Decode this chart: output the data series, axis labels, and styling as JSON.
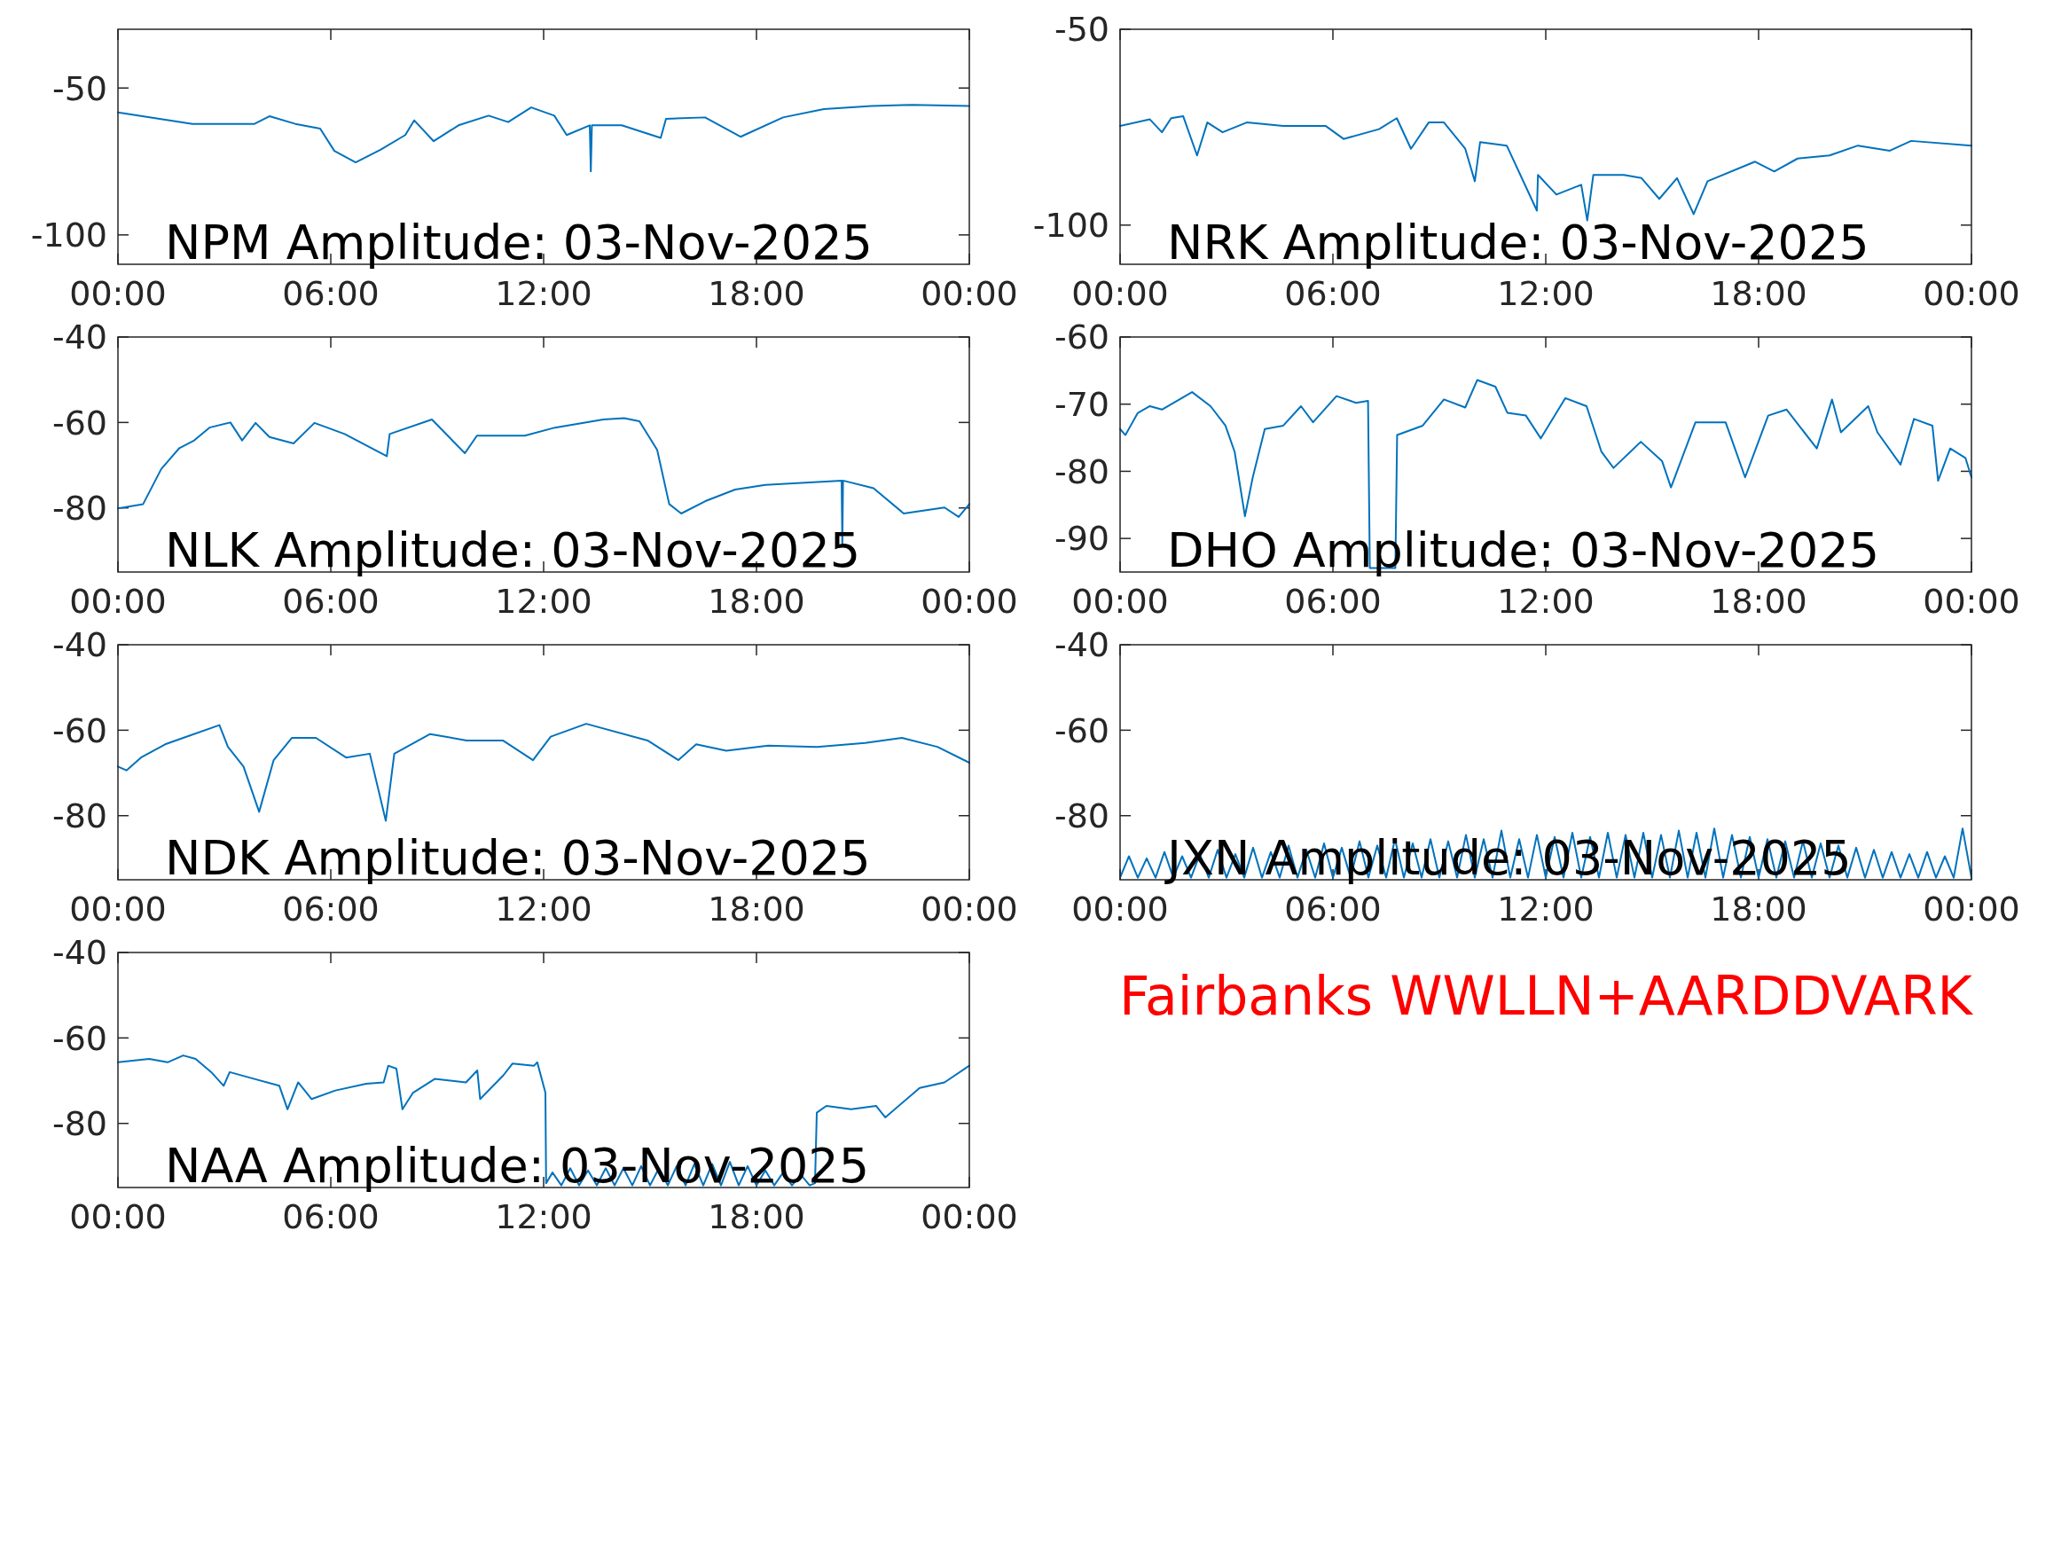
{
  "chart_data": [
    {
      "type": "line",
      "title": "NPM Amplitude: 03-Nov-2025",
      "color": "#0072bd",
      "xlim": [
        0,
        24
      ],
      "ylim": [
        -110,
        -30
      ],
      "yticks": [
        -100,
        -50
      ],
      "xticks": [
        {
          "value": 0,
          "label": "00:00"
        },
        {
          "value": 6,
          "label": "06:00"
        },
        {
          "value": 12,
          "label": "12:00"
        },
        {
          "value": 18,
          "label": "18:00"
        },
        {
          "value": 24,
          "label": "00:00"
        }
      ],
      "x": [
        0,
        2.1,
        3.85,
        4.27,
        5,
        5.7,
        6.1,
        6.7,
        7.4,
        8.1,
        8.35,
        8.9,
        9.6,
        10.45,
        11,
        11.65,
        12.3,
        12.65,
        13.3,
        13.33,
        13.36,
        14.2,
        15.3,
        15.45,
        16.55,
        17.55,
        18.75,
        19.9,
        21.25,
        22.4,
        24
      ],
      "values": [
        -58.3,
        -62.2,
        -62.2,
        -59.6,
        -62.2,
        -63.8,
        -71.4,
        -75.3,
        -71,
        -66,
        -61,
        -68.1,
        -62.7,
        -59.4,
        -61.6,
        -56.6,
        -59.4,
        -66,
        -62.7,
        -78.4,
        -62.7,
        -62.7,
        -67,
        -60.5,
        -60,
        -66.6,
        -60,
        -57.2,
        -56.1,
        -55.7,
        -56.1
      ]
    },
    {
      "type": "line",
      "title": "NRK Amplitude: 03-Nov-2025",
      "color": "#0072bd",
      "xlim": [
        0,
        24
      ],
      "ylim": [
        -110,
        -50
      ],
      "yticks": [
        -100,
        -50
      ],
      "xticks": [
        {
          "value": 0,
          "label": "00:00"
        },
        {
          "value": 6,
          "label": "06:00"
        },
        {
          "value": 12,
          "label": "12:00"
        },
        {
          "value": 18,
          "label": "18:00"
        },
        {
          "value": 24,
          "label": "00:00"
        }
      ],
      "x": [
        0,
        0.84,
        1.18,
        1.44,
        1.78,
        2.17,
        2.46,
        2.89,
        3.57,
        4.6,
        5.8,
        6.3,
        7.3,
        7.8,
        8.2,
        8.7,
        9.13,
        9.73,
        10,
        10.15,
        10.9,
        11.75,
        11.78,
        12.3,
        13,
        13.17,
        13.34,
        14.2,
        14.7,
        15.2,
        15.7,
        16.17,
        16.56,
        17.9,
        18.44,
        19.1,
        20,
        20.8,
        21.7,
        22.3,
        24
      ],
      "values": [
        -74.7,
        -73,
        -76.3,
        -72.7,
        -72.2,
        -82.2,
        -73.8,
        -76.3,
        -73.8,
        -74.7,
        -74.7,
        -78,
        -75.5,
        -72.7,
        -80.5,
        -73.8,
        -73.8,
        -80.5,
        -88.8,
        -78.8,
        -79.7,
        -96.3,
        -87.2,
        -92.2,
        -89.7,
        -98.8,
        -87.2,
        -87.2,
        -88,
        -93.3,
        -88,
        -97.2,
        -88.8,
        -83.8,
        -86.3,
        -83,
        -82.2,
        -79.7,
        -81,
        -78.5,
        -79.7
      ]
    },
    {
      "type": "line",
      "title": "NLK Amplitude: 03-Nov-2025",
      "color": "#0072bd",
      "xlim": [
        0,
        24
      ],
      "ylim": [
        -95,
        -40
      ],
      "yticks": [
        -80,
        -60,
        -40
      ],
      "xticks": [
        {
          "value": 0,
          "label": "00:00"
        },
        {
          "value": 6,
          "label": "06:00"
        },
        {
          "value": 12,
          "label": "12:00"
        },
        {
          "value": 18,
          "label": "18:00"
        },
        {
          "value": 24,
          "label": "00:00"
        }
      ],
      "x": [
        0,
        0.71,
        1.22,
        1.73,
        2.15,
        2.58,
        3.17,
        3.5,
        3.88,
        4.27,
        4.95,
        5.54,
        6.39,
        7.58,
        7.66,
        8.85,
        9.78,
        10.12,
        11.47,
        12.32,
        13.68,
        14.27,
        14.7,
        15.2,
        15.54,
        15.88,
        16.56,
        17.4,
        18.25,
        20.4,
        20.42,
        20.44,
        21.3,
        22.15,
        23.3,
        23.7,
        24
      ],
      "values": [
        -80.1,
        -79.1,
        -70.9,
        -66,
        -64.2,
        -61.2,
        -60,
        -64.2,
        -60.1,
        -63.4,
        -64.9,
        -60.1,
        -62.7,
        -67.9,
        -62.7,
        -59.3,
        -67.2,
        -63.1,
        -63.1,
        -61.2,
        -59.3,
        -59,
        -59.7,
        -66.4,
        -79.1,
        -81.3,
        -78.4,
        -75.7,
        -74.6,
        -73.6,
        -88.8,
        -73.6,
        -75.4,
        -81.3,
        -79.9,
        -82.1,
        -79.1
      ]
    },
    {
      "type": "line",
      "title": "DHO Amplitude: 03-Nov-2025",
      "color": "#0072bd",
      "xlim": [
        0,
        24
      ],
      "ylim": [
        -95,
        -60
      ],
      "yticks": [
        -90,
        -80,
        -70,
        -60
      ],
      "xticks": [
        {
          "value": 0,
          "label": "00:00"
        },
        {
          "value": 6,
          "label": "06:00"
        },
        {
          "value": 12,
          "label": "12:00"
        },
        {
          "value": 18,
          "label": "18:00"
        },
        {
          "value": 24,
          "label": "00:00"
        }
      ],
      "x": [
        0,
        0.15,
        0.5,
        0.84,
        1.18,
        2.03,
        2.55,
        2.97,
        3.23,
        3.52,
        3.74,
        4.08,
        4.6,
        5.1,
        5.44,
        6.1,
        6.65,
        6.99,
        7.04,
        7.76,
        7.81,
        8.53,
        9.13,
        9.73,
        10.07,
        10.58,
        10.92,
        11.44,
        11.86,
        12.55,
        13.15,
        13.57,
        13.91,
        14.68,
        15.28,
        15.53,
        16.22,
        17.07,
        17.62,
        18.27,
        18.79,
        19.64,
        20.07,
        20.32,
        21.09,
        21.35,
        22,
        22.38,
        22.9,
        23.06,
        23.4,
        23.83,
        24
      ],
      "values": [
        -73.7,
        -74.6,
        -71.3,
        -70.3,
        -70.8,
        -68.2,
        -70.3,
        -73.2,
        -77.1,
        -86.7,
        -80.9,
        -73.7,
        -73.2,
        -70.3,
        -72.7,
        -68.8,
        -69.8,
        -69.5,
        -94.4,
        -94.4,
        -74.6,
        -73.2,
        -69.3,
        -70.5,
        -66.4,
        -67.4,
        -71.3,
        -71.7,
        -75.1,
        -69.1,
        -70.3,
        -77.1,
        -79.5,
        -75.6,
        -78.5,
        -82.4,
        -72.7,
        -72.7,
        -80.9,
        -71.7,
        -70.8,
        -76.6,
        -69.3,
        -74.2,
        -70.3,
        -74.2,
        -79,
        -72.2,
        -73.2,
        -81.4,
        -76.6,
        -78,
        -80.9
      ]
    },
    {
      "type": "line",
      "title": "NDK Amplitude: 03-Nov-2025",
      "color": "#0072bd",
      "xlim": [
        0,
        24
      ],
      "ylim": [
        -95,
        -40
      ],
      "yticks": [
        -80,
        -60,
        -40
      ],
      "xticks": [
        {
          "value": 0,
          "label": "00:00"
        },
        {
          "value": 6,
          "label": "06:00"
        },
        {
          "value": 12,
          "label": "12:00"
        },
        {
          "value": 18,
          "label": "18:00"
        },
        {
          "value": 24,
          "label": "00:00"
        }
      ],
      "x": [
        0,
        0.24,
        0.65,
        1.33,
        1.84,
        2.86,
        3.1,
        3.54,
        3.98,
        4.39,
        4.9,
        5.58,
        6.43,
        7.1,
        7.55,
        7.79,
        8.8,
        9.83,
        10.85,
        11.7,
        12.2,
        13.2,
        14.93,
        15.8,
        16.3,
        17.15,
        18.33,
        19.7,
        21.06,
        22.1,
        23.1,
        24
      ],
      "values": [
        -68.5,
        -69.4,
        -66.4,
        -63.3,
        -61.8,
        -58.8,
        -63.9,
        -68.5,
        -79.1,
        -67,
        -61.8,
        -61.8,
        -66.4,
        -65.5,
        -81.2,
        -65.5,
        -60.9,
        -62.4,
        -62.4,
        -67,
        -61.5,
        -58.5,
        -62.4,
        -67,
        -63.3,
        -64.8,
        -63.6,
        -63.9,
        -63,
        -61.8,
        -63.9,
        -67.6
      ]
    },
    {
      "type": "line",
      "title": "JXN Amplitude: 03-Nov-2025",
      "color": "#0072bd",
      "xlim": [
        0,
        24
      ],
      "ylim": [
        -95,
        -40
      ],
      "yticks": [
        -80,
        -60,
        -40
      ],
      "xticks": [
        {
          "value": 0,
          "label": "00:00"
        },
        {
          "value": 6,
          "label": "06:00"
        },
        {
          "value": 12,
          "label": "12:00"
        },
        {
          "value": 18,
          "label": "18:00"
        },
        {
          "value": 24,
          "label": "00:00"
        }
      ],
      "x": [
        0,
        0.25,
        0.5,
        0.75,
        1,
        1.25,
        1.5,
        1.75,
        2,
        2.25,
        2.5,
        2.75,
        3,
        3.25,
        3.5,
        3.75,
        4,
        4.25,
        4.5,
        4.75,
        5,
        5.25,
        5.5,
        5.75,
        6,
        6.25,
        6.5,
        6.75,
        7,
        7.25,
        7.5,
        7.75,
        8,
        8.25,
        8.5,
        8.75,
        9,
        9.25,
        9.5,
        9.75,
        10,
        10.25,
        10.5,
        10.75,
        11,
        11.25,
        11.5,
        11.75,
        12,
        12.25,
        12.5,
        12.75,
        13,
        13.25,
        13.5,
        13.75,
        14,
        14.25,
        14.5,
        14.75,
        15,
        15.25,
        15.5,
        15.75,
        16,
        16.25,
        16.5,
        16.75,
        17,
        17.25,
        17.5,
        17.75,
        18,
        18.25,
        18.5,
        18.75,
        19,
        19.25,
        19.5,
        19.75,
        20,
        20.25,
        20.5,
        20.75,
        21,
        21.25,
        21.5,
        21.75,
        22,
        22.25,
        22.5,
        22.75,
        23,
        23.25,
        23.5,
        23.75,
        24
      ],
      "values": [
        -94.5,
        -89.5,
        -94.5,
        -90,
        -94.5,
        -88.5,
        -94.5,
        -89.5,
        -94.5,
        -89,
        -94.5,
        -88,
        -94.5,
        -89,
        -94.5,
        -87.5,
        -94.5,
        -88.5,
        -94.5,
        -87,
        -94.5,
        -88,
        -94.5,
        -86.5,
        -94.5,
        -87.5,
        -94.5,
        -86,
        -94.5,
        -87,
        -94.5,
        -85.5,
        -94.5,
        -86.5,
        -94.5,
        -85.5,
        -94.5,
        -86,
        -94.5,
        -84.5,
        -94.5,
        -85.5,
        -94.5,
        -83.5,
        -94.5,
        -85.5,
        -94.5,
        -84.5,
        -94.5,
        -85,
        -94.5,
        -84,
        -94.5,
        -85,
        -94.5,
        -84,
        -94.5,
        -84.5,
        -94.5,
        -84,
        -94.5,
        -84.5,
        -94.5,
        -83.5,
        -94.5,
        -84,
        -94.5,
        -83,
        -94.5,
        -84.5,
        -94.5,
        -85,
        -94.5,
        -85.5,
        -94.5,
        -86,
        -94.5,
        -86,
        -94.5,
        -86.5,
        -94.5,
        -87,
        -94.5,
        -87.5,
        -94.5,
        -88,
        -94.5,
        -88.5,
        -94.5,
        -89,
        -94.5,
        -88.5,
        -94.5,
        -89.5,
        -94.5,
        -83,
        -94.5
      ]
    },
    {
      "type": "line",
      "title": "NAA Amplitude: 03-Nov-2025",
      "color": "#0072bd",
      "xlim": [
        0,
        24
      ],
      "ylim": [
        -95,
        -40
      ],
      "yticks": [
        -80,
        -60,
        -40
      ],
      "xticks": [
        {
          "value": 0,
          "label": "00:00"
        },
        {
          "value": 6,
          "label": "06:00"
        },
        {
          "value": 12,
          "label": "12:00"
        },
        {
          "value": 18,
          "label": "18:00"
        },
        {
          "value": 24,
          "label": "00:00"
        }
      ],
      "x": [
        0,
        0.88,
        1.4,
        1.84,
        2.19,
        2.63,
        2.98,
        3.15,
        3.85,
        4.55,
        4.78,
        5.08,
        5.46,
        6.13,
        7,
        7.49,
        7.62,
        7.85,
        8.02,
        8.32,
        8.93,
        9.81,
        10.13,
        10.21,
        10.86,
        11.12,
        11.73,
        11.82,
        12.05,
        12.07,
        12.25,
        12.5,
        12.75,
        13,
        13.25,
        13.5,
        13.75,
        14,
        14.25,
        14.5,
        14.75,
        15,
        15.25,
        15.5,
        15.75,
        16,
        16.25,
        16.5,
        16.75,
        17,
        17.25,
        17.5,
        17.75,
        18,
        18.25,
        18.5,
        18.75,
        19,
        19.25,
        19.5,
        19.65,
        19.7,
        19.97,
        20.67,
        21.37,
        21.63,
        22.6,
        23.3,
        24
      ],
      "values": [
        -65.7,
        -64.9,
        -65.7,
        -64.1,
        -64.9,
        -68,
        -71.2,
        -68,
        -69.6,
        -71.2,
        -76.7,
        -70.4,
        -74.3,
        -72.3,
        -70.7,
        -70.4,
        -66.5,
        -67.2,
        -76.7,
        -72.8,
        -69.6,
        -70.4,
        -67.6,
        -74.3,
        -68.8,
        -66,
        -66.5,
        -65.7,
        -72.8,
        -94,
        -91.5,
        -94.5,
        -90.5,
        -94.5,
        -91,
        -94.5,
        -90.5,
        -94.5,
        -90.5,
        -94.5,
        -90,
        -94.5,
        -90.5,
        -94.5,
        -90,
        -94.5,
        -89.5,
        -94.5,
        -89.5,
        -94.5,
        -89,
        -94.5,
        -90,
        -94.5,
        -91,
        -94.5,
        -91.5,
        -94.5,
        -92,
        -94.5,
        -94,
        -77.5,
        -75.9,
        -76.7,
        -75.9,
        -78.6,
        -71.7,
        -70.4,
        -66.5
      ]
    },
    {
      "type": "other",
      "title": "Fairbanks WWLLN+AARDDVARK",
      "color": "#ff0000"
    }
  ]
}
